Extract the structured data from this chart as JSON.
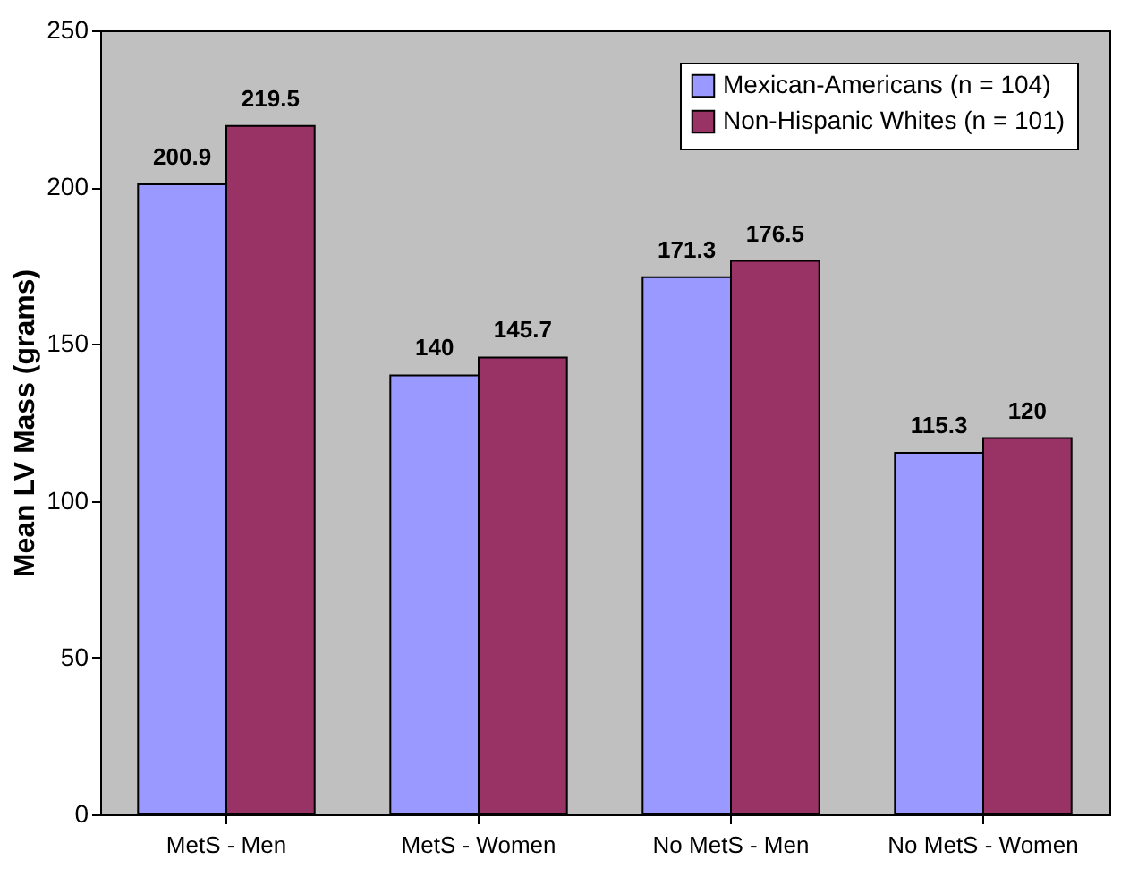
{
  "chart_data": {
    "type": "bar",
    "ylabel": "Mean LV Mass (grams)",
    "categories": [
      "MetS - Men",
      "MetS - Women",
      "No MetS - Men",
      "No MetS - Women"
    ],
    "series": [
      {
        "name": "Mexican-Americans (n = 104)",
        "color": "#9999ff",
        "values": [
          200.9,
          140,
          171.3,
          115.3
        ]
      },
      {
        "name": "Non-Hispanic Whites (n = 101)",
        "color": "#993366",
        "values": [
          219.5,
          145.7,
          176.5,
          120
        ]
      }
    ],
    "ylim": [
      0,
      250
    ],
    "yticks": [
      0,
      50,
      100,
      150,
      200,
      250
    ],
    "grid": false,
    "legend": "top right",
    "data_labels": true
  }
}
